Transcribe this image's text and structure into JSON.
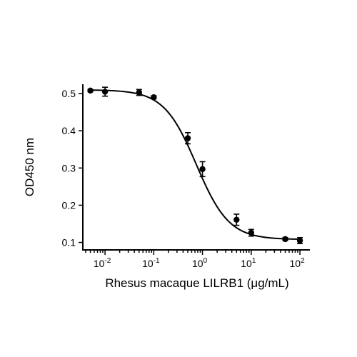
{
  "chart_data": {
    "type": "scatter",
    "xlabel": "Rhesus macaque LILRB1 (μg/mL)",
    "ylabel": "OD450 nm",
    "x_scale": "log",
    "xlim": [
      0.0035,
      160
    ],
    "ylim": [
      0.08,
      0.525
    ],
    "x_ticks": [
      {
        "value": 0.01,
        "base": "10",
        "exp": "-2"
      },
      {
        "value": 0.1,
        "base": "10",
        "exp": "-1"
      },
      {
        "value": 1,
        "base": "10",
        "exp": "0"
      },
      {
        "value": 10,
        "base": "10",
        "exp": "1"
      },
      {
        "value": 100,
        "base": "10",
        "exp": "2"
      }
    ],
    "y_ticks": [
      {
        "value": 0.1,
        "label": "0.1"
      },
      {
        "value": 0.2,
        "label": "0.2"
      },
      {
        "value": 0.3,
        "label": "0.3"
      },
      {
        "value": 0.4,
        "label": "0.4"
      },
      {
        "value": 0.5,
        "label": "0.5"
      }
    ],
    "grid": false,
    "series": [
      {
        "points": [
          {
            "x": 0.005,
            "y": 0.508,
            "err": 0.003
          },
          {
            "x": 0.01,
            "y": 0.505,
            "err": 0.012
          },
          {
            "x": 0.05,
            "y": 0.503,
            "err": 0.008
          },
          {
            "x": 0.1,
            "y": 0.49,
            "err": 0.004
          },
          {
            "x": 0.5,
            "y": 0.38,
            "err": 0.015
          },
          {
            "x": 1,
            "y": 0.297,
            "err": 0.02
          },
          {
            "x": 5,
            "y": 0.161,
            "err": 0.015
          },
          {
            "x": 10,
            "y": 0.126,
            "err": 0.009
          },
          {
            "x": 50,
            "y": 0.109,
            "err": 0.004
          },
          {
            "x": 100,
            "y": 0.105,
            "err": 0.008
          }
        ],
        "fit": {
          "model": "4PL",
          "top": 0.51,
          "bottom": 0.108,
          "ec50": 0.75,
          "hill": 1.3
        }
      }
    ]
  }
}
